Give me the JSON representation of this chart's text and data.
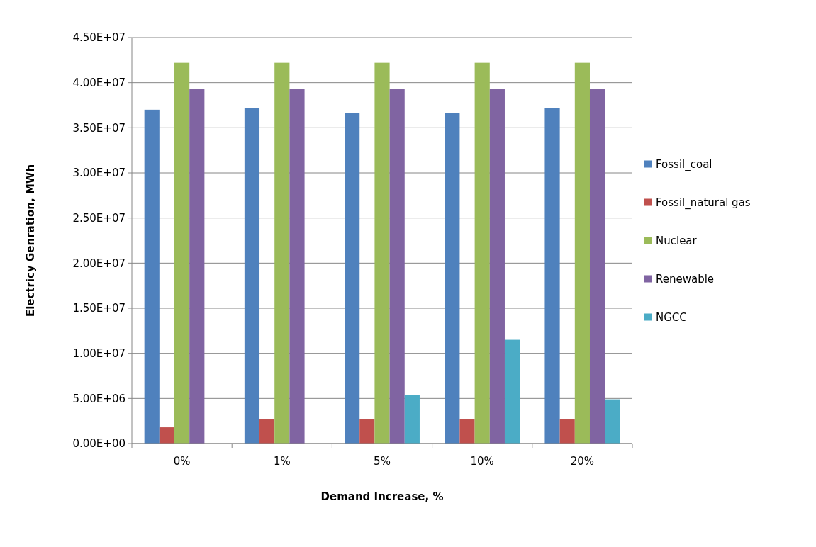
{
  "chart_data": {
    "type": "bar",
    "xlabel": "Demand Increase, %",
    "ylabel": "Electricy Genration, MWh",
    "categories": [
      "0%",
      "1%",
      "5%",
      "10%",
      "20%"
    ],
    "series": [
      {
        "name": "Fossil_coal",
        "color": "#4f81bd",
        "values": [
          37000000,
          37200000,
          36600000,
          36600000,
          37200000
        ]
      },
      {
        "name": "Fossil_natural gas",
        "color": "#c0504d",
        "values": [
          1800000,
          2700000,
          2700000,
          2700000,
          2700000
        ]
      },
      {
        "name": "Nuclear",
        "color": "#9bbb59",
        "values": [
          42200000,
          42200000,
          42200000,
          42200000,
          42200000
        ]
      },
      {
        "name": "Renewable",
        "color": "#8064a2",
        "values": [
          39300000,
          39300000,
          39300000,
          39300000,
          39300000
        ]
      },
      {
        "name": "NGCC",
        "color": "#4bacc6",
        "values": [
          0,
          0,
          5400000,
          11500000,
          4900000
        ]
      }
    ],
    "ylim": [
      0,
      45000000
    ],
    "yticks": [
      {
        "value": 0,
        "label": "0.00E+00"
      },
      {
        "value": 5000000,
        "label": "5.00E+06"
      },
      {
        "value": 10000000,
        "label": "1.00E+07"
      },
      {
        "value": 15000000,
        "label": "1.50E+07"
      },
      {
        "value": 20000000,
        "label": "2.00E+07"
      },
      {
        "value": 25000000,
        "label": "2.50E+07"
      },
      {
        "value": 30000000,
        "label": "3.00E+07"
      },
      {
        "value": 35000000,
        "label": "3.50E+07"
      },
      {
        "value": 40000000,
        "label": "4.00E+07"
      },
      {
        "value": 45000000,
        "label": "4.50E+07"
      }
    ],
    "grid": "y",
    "legend": "right"
  }
}
